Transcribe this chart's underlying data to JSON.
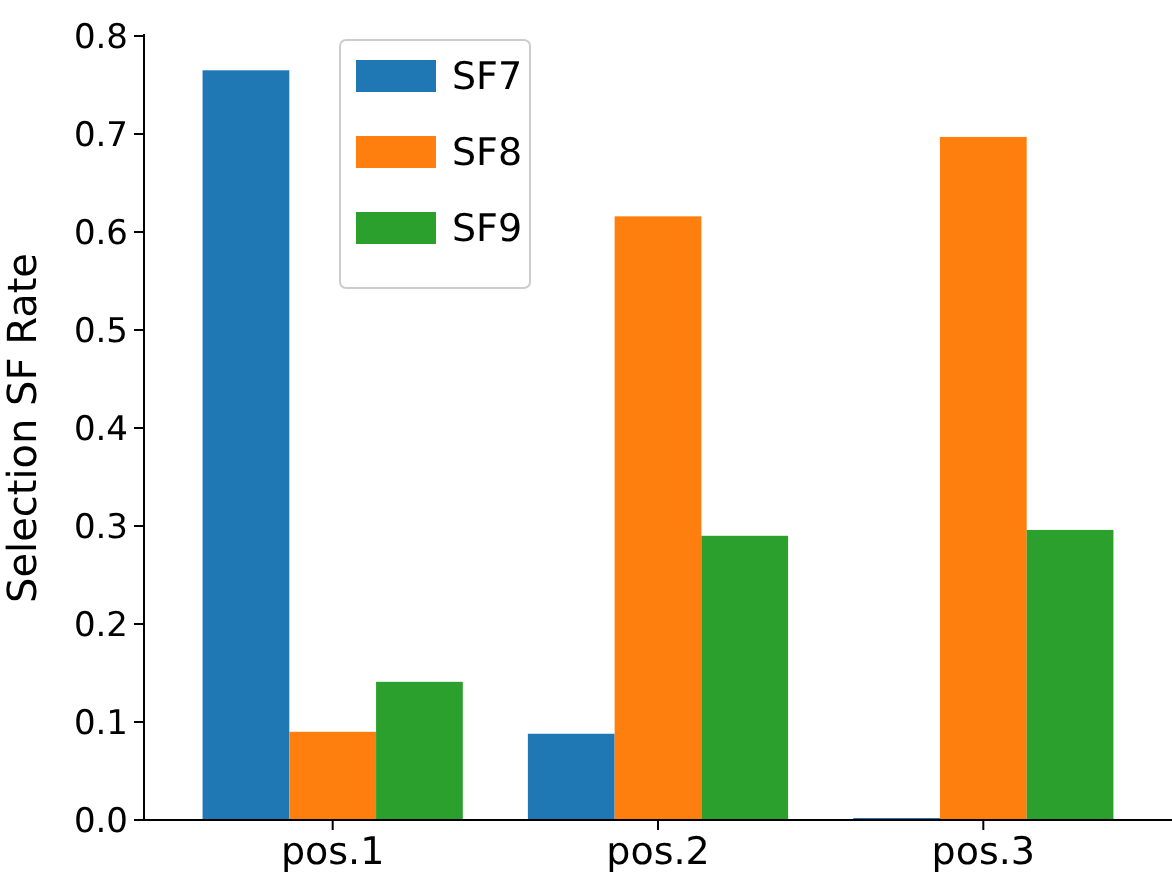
{
  "chart_data": {
    "type": "bar",
    "categories": [
      "pos.1",
      "pos.2",
      "pos.3"
    ],
    "ylabel": "Selection SF Rate",
    "ylim": [
      0,
      0.8
    ],
    "yticks": [
      {
        "value": 0,
        "label": "0.0"
      },
      0.1,
      0.2,
      0.3,
      0.4,
      0.5,
      0.6,
      0.7,
      0.8
    ],
    "legend": "top left",
    "grid": false,
    "series": [
      {
        "name": "SF7",
        "color": "#1f77b4",
        "values": [
          0.765,
          0.088,
          0.002
        ]
      },
      {
        "name": "SF8",
        "color": "#ff7f0e",
        "values": [
          0.09,
          0.616,
          0.697
        ]
      },
      {
        "name": "SF9",
        "color": "#2ca02c",
        "values": [
          0.141,
          0.29,
          0.296
        ]
      }
    ]
  }
}
